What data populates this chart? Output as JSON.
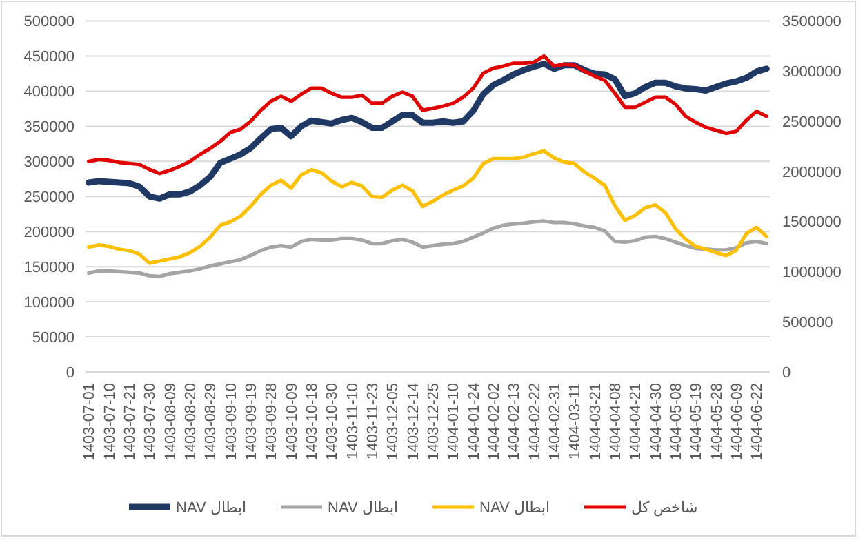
{
  "chart_data": {
    "type": "line",
    "categories": [
      "1403-07-01",
      null,
      "1403-07-10",
      null,
      "1403-07-21",
      null,
      "1403-07-30",
      null,
      "1403-08-09",
      null,
      "1403-08-20",
      null,
      "1403-08-29",
      null,
      "1403-09-10",
      null,
      "1403-09-19",
      null,
      "1403-09-28",
      null,
      "1403-10-09",
      null,
      "1403-10-18",
      null,
      "1403-10-30",
      null,
      "1403-11-10",
      null,
      "1403-11-23",
      null,
      "1403-12-05",
      null,
      "1403-12-14",
      null,
      "1403-12-25",
      null,
      "1404-01-10",
      null,
      "1404-01-24",
      null,
      "1404-02-02",
      null,
      "1404-02-13",
      null,
      "1404-02-22",
      null,
      "1404-02-31",
      null,
      "1404-03-11",
      null,
      "1404-03-21",
      null,
      "1404-04-08",
      null,
      "1404-04-21",
      null,
      "1404-04-30",
      null,
      "1404-05-08",
      null,
      "1404-05-19",
      null,
      "1404-05-28",
      null,
      "1404-06-09",
      null,
      "1404-06-22",
      null
    ],
    "series": [
      {
        "name": "NAV ابطال",
        "color": "#1f3864",
        "values": [
          270000,
          272000,
          271000,
          270000,
          269000,
          264000,
          250000,
          247000,
          253000,
          253000,
          257000,
          266000,
          278000,
          298000,
          304000,
          310000,
          319000,
          333000,
          346000,
          348000,
          336000,
          350000,
          358000,
          356000,
          354000,
          359000,
          362000,
          356000,
          348000,
          348000,
          357000,
          366000,
          366000,
          355000,
          355000,
          357000,
          355000,
          357000,
          372000,
          396000,
          409000,
          416000,
          424000,
          430000,
          435000,
          439000,
          432000,
          437000,
          437000,
          430000,
          425000,
          424000,
          417000,
          393000,
          397000,
          406000,
          412000,
          412000,
          407000,
          404000,
          403000,
          401000,
          406000,
          411000,
          414000,
          419000,
          428000,
          432000
        ]
      },
      {
        "name": "NAV ابطال",
        "color": "#a5a5a5",
        "values": [
          141000,
          144000,
          144000,
          143000,
          142000,
          141000,
          137000,
          136000,
          140000,
          142000,
          144000,
          147000,
          151000,
          154000,
          157000,
          160000,
          166000,
          173000,
          178000,
          180000,
          178000,
          186000,
          189000,
          188000,
          188000,
          190000,
          190000,
          188000,
          183000,
          183000,
          187000,
          189000,
          185000,
          178000,
          180000,
          182000,
          183000,
          186000,
          192000,
          198000,
          205000,
          209000,
          211000,
          212000,
          214000,
          215000,
          213000,
          213000,
          211000,
          208000,
          206000,
          201000,
          186000,
          185000,
          187000,
          192000,
          193000,
          190000,
          185000,
          180000,
          176000,
          175000,
          174000,
          174000,
          177000,
          184000,
          186000,
          183000
        ]
      },
      {
        "name": "NAV ابطال",
        "color": "#ffc000",
        "values": [
          178000,
          181000,
          179000,
          175000,
          173000,
          168000,
          155000,
          158000,
          161000,
          164000,
          170000,
          179000,
          192000,
          209000,
          214000,
          222000,
          236000,
          253000,
          266000,
          273000,
          262000,
          281000,
          288000,
          284000,
          272000,
          264000,
          270000,
          265000,
          250000,
          249000,
          259000,
          266000,
          258000,
          236000,
          243000,
          252000,
          259000,
          265000,
          276000,
          297000,
          304000,
          304000,
          304000,
          306000,
          311000,
          315000,
          305000,
          299000,
          297000,
          285000,
          276000,
          266000,
          237000,
          216000,
          223000,
          234000,
          238000,
          227000,
          204000,
          189000,
          179000,
          175000,
          170000,
          166000,
          173000,
          197000,
          206000,
          193000
        ]
      },
      {
        "name": "شاخص کل",
        "color": "#e00000",
        "axis": "y2",
        "values": [
          2100000,
          2120000,
          2110000,
          2090000,
          2080000,
          2070000,
          2020000,
          1980000,
          2010000,
          2050000,
          2100000,
          2170000,
          2230000,
          2300000,
          2390000,
          2420000,
          2500000,
          2610000,
          2700000,
          2750000,
          2700000,
          2770000,
          2830000,
          2830000,
          2780000,
          2740000,
          2740000,
          2760000,
          2680000,
          2680000,
          2750000,
          2790000,
          2750000,
          2610000,
          2630000,
          2650000,
          2680000,
          2740000,
          2830000,
          2980000,
          3030000,
          3050000,
          3080000,
          3080000,
          3090000,
          3150000,
          3050000,
          3070000,
          3060000,
          3000000,
          2950000,
          2910000,
          2780000,
          2640000,
          2640000,
          2690000,
          2740000,
          2740000,
          2670000,
          2550000,
          2490000,
          2440000,
          2410000,
          2380000,
          2400000,
          2510000,
          2600000,
          2550000
        ]
      }
    ],
    "ylim": [
      0,
      500000
    ],
    "yticks": [
      0,
      50000,
      100000,
      150000,
      200000,
      250000,
      300000,
      350000,
      400000,
      450000,
      500000
    ],
    "y2lim": [
      0,
      3500000
    ],
    "y2ticks": [
      0,
      500000,
      1000000,
      1500000,
      2000000,
      2500000,
      3000000,
      3500000
    ],
    "grid": "y",
    "legend": "bottom"
  }
}
